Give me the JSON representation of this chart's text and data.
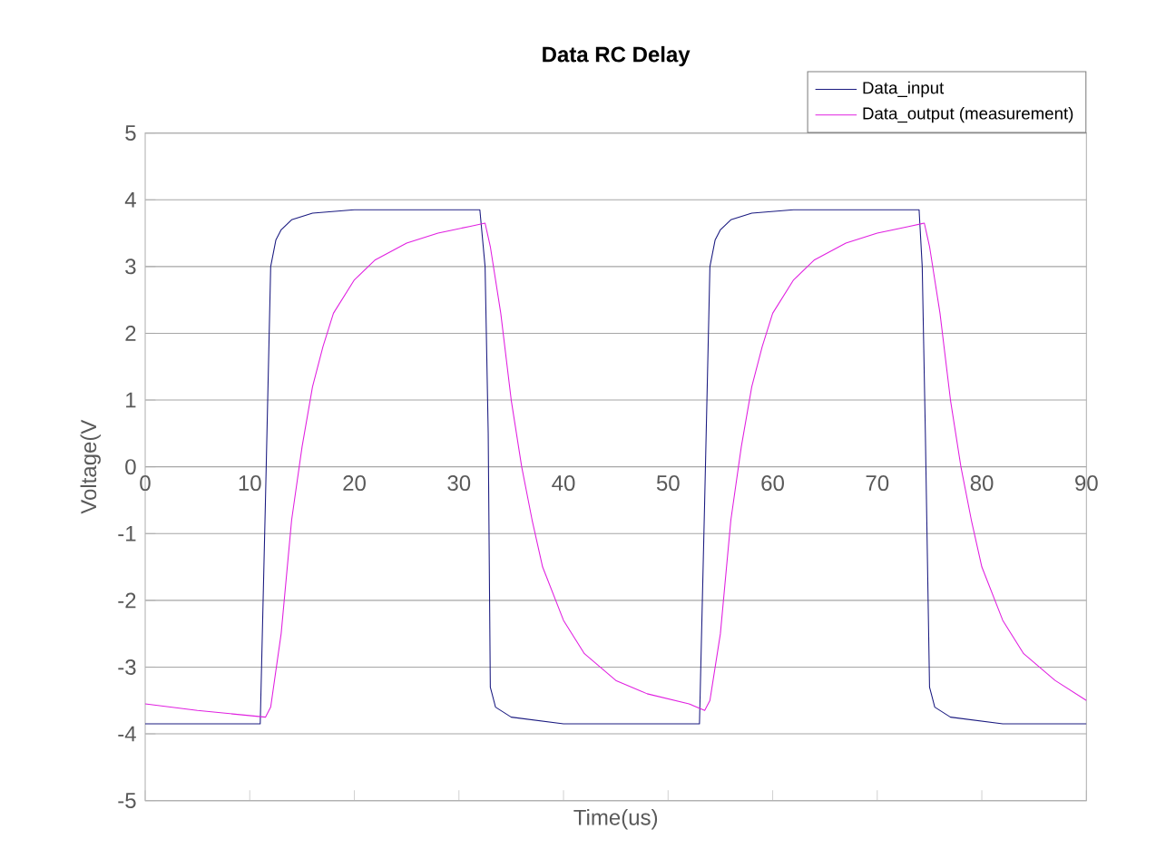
{
  "chart_data": {
    "type": "line",
    "title": "Data RC Delay",
    "xlabel": "Time(us)",
    "ylabel": "Voltage(V",
    "xlim": [
      0,
      90
    ],
    "ylim": [
      -5,
      5
    ],
    "xticks": [
      0,
      10,
      20,
      30,
      40,
      50,
      60,
      70,
      80,
      90
    ],
    "yticks": [
      -5,
      -4,
      -3,
      -2,
      -1,
      0,
      1,
      2,
      3,
      4,
      5
    ],
    "grid": "y",
    "legend": "top right",
    "marker": "none",
    "line_style": "solid",
    "series": [
      {
        "name": "Data_input",
        "color": "#1a1a80",
        "x": [
          0,
          5,
          11,
          11.5,
          12,
          12.5,
          13,
          14,
          16,
          20,
          32,
          32.5,
          32.8,
          33,
          33.5,
          35,
          40,
          53,
          53.5,
          54,
          54.5,
          55,
          56,
          58,
          62,
          74,
          74.3,
          74.6,
          75,
          75.5,
          77,
          82,
          90
        ],
        "values": [
          -3.85,
          -3.85,
          -3.85,
          -0.5,
          3.0,
          3.4,
          3.55,
          3.7,
          3.8,
          3.85,
          3.85,
          3.0,
          0.5,
          -3.3,
          -3.6,
          -3.75,
          -3.85,
          -3.85,
          -0.5,
          3.0,
          3.4,
          3.55,
          3.7,
          3.8,
          3.85,
          3.85,
          3.0,
          0.5,
          -3.3,
          -3.6,
          -3.75,
          -3.85,
          -3.85
        ]
      },
      {
        "name": "Data_output (measurement)",
        "color": "#e020e0",
        "x": [
          0,
          5,
          11.5,
          12,
          13,
          14,
          15,
          16,
          17,
          18,
          20,
          22,
          25,
          28,
          31,
          32.5,
          33,
          34,
          35,
          36,
          37,
          38,
          40,
          42,
          45,
          48,
          52,
          53.5,
          54,
          55,
          56,
          57,
          58,
          59,
          60,
          62,
          64,
          67,
          70,
          73,
          74.5,
          75,
          76,
          77,
          78,
          79,
          80,
          82,
          84,
          87,
          90
        ],
        "values": [
          -3.55,
          -3.65,
          -3.75,
          -3.6,
          -2.5,
          -0.8,
          0.3,
          1.2,
          1.8,
          2.3,
          2.8,
          3.1,
          3.35,
          3.5,
          3.6,
          3.65,
          3.3,
          2.3,
          1.0,
          0,
          -0.8,
          -1.5,
          -2.3,
          -2.8,
          -3.2,
          -3.4,
          -3.55,
          -3.65,
          -3.5,
          -2.5,
          -0.8,
          0.3,
          1.2,
          1.8,
          2.3,
          2.8,
          3.1,
          3.35,
          3.5,
          3.6,
          3.65,
          3.3,
          2.3,
          1.0,
          0,
          -0.8,
          -1.5,
          -2.3,
          -2.8,
          -3.2,
          -3.5
        ]
      }
    ]
  }
}
